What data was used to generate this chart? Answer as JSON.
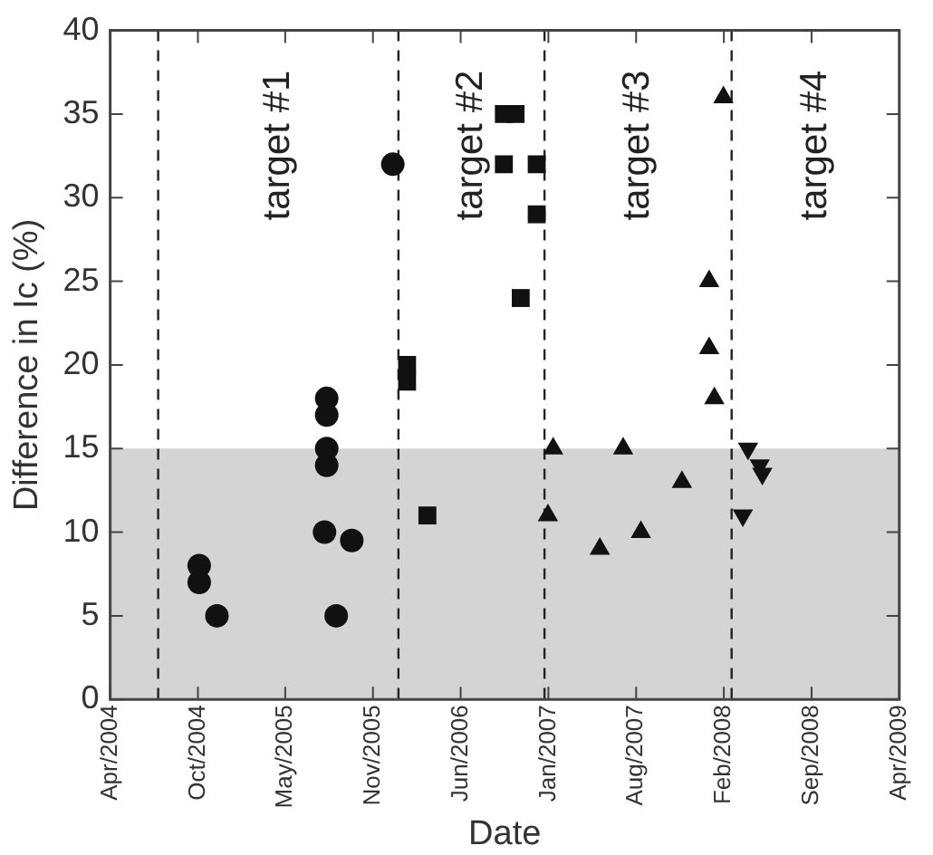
{
  "chart_data": {
    "type": "scatter",
    "xlabel": "Date",
    "ylabel": "Difference in Ic (%)",
    "xlim": [
      "2004-04-01",
      "2009-04-01"
    ],
    "ylim": [
      0,
      40
    ],
    "yticks": [
      0,
      5,
      10,
      15,
      20,
      25,
      30,
      35,
      40
    ],
    "xticks": [
      {
        "value": "2004-04-01",
        "label": "Apr/2004"
      },
      {
        "value": "2004-10-21",
        "label": "Oct/2004"
      },
      {
        "value": "2005-05-11",
        "label": "May/2005"
      },
      {
        "value": "2005-11-30",
        "label": "Nov/2005"
      },
      {
        "value": "2006-06-21",
        "label": "Jun/2006"
      },
      {
        "value": "2007-01-10",
        "label": "Jan/2007"
      },
      {
        "value": "2007-08-01",
        "label": "Aug/2007"
      },
      {
        "value": "2008-02-20",
        "label": "Feb/2008"
      },
      {
        "value": "2008-09-10",
        "label": "Sep/2008"
      },
      {
        "value": "2009-04-01",
        "label": "Apr/2009"
      }
    ],
    "grid": false,
    "legend": false,
    "series": [
      {
        "color": "#111111",
        "marker": "circle",
        "x": [
          "2004-10-24",
          "2004-10-24",
          "2004-12-04",
          "2005-08-15",
          "2005-08-15",
          "2005-08-15",
          "2005-08-15",
          "2005-08-10",
          "2005-09-06",
          "2005-10-12",
          "2006-01-15"
        ],
        "values": [
          8,
          7,
          5,
          18,
          17,
          15,
          14,
          10,
          5,
          9.5,
          32
        ]
      },
      {
        "color": "#111111",
        "marker": "square",
        "x": [
          "2006-02-17",
          "2006-02-17",
          "2006-04-05",
          "2006-09-29",
          "2006-09-29",
          "2006-10-26",
          "2006-11-07",
          "2006-12-14",
          "2006-12-14"
        ],
        "values": [
          20,
          19,
          11,
          35,
          32,
          35,
          24,
          32,
          29
        ]
      },
      {
        "color": "#111111",
        "marker": "triangle",
        "x": [
          "2007-01-09",
          "2007-01-21",
          "2007-05-09",
          "2007-07-02",
          "2007-08-12",
          "2007-11-15",
          "2008-01-17",
          "2008-01-17",
          "2008-01-29",
          "2008-02-19"
        ],
        "values": [
          11,
          15,
          9,
          15,
          10,
          13,
          25,
          21,
          18,
          36
        ]
      },
      {
        "color": "#111111",
        "marker": "triangle-down",
        "x": [
          "2008-04-04",
          "2008-04-16",
          "2008-05-13",
          "2008-05-19"
        ],
        "values": [
          11,
          15,
          14,
          13.5
        ]
      }
    ],
    "ref_lines": [
      {
        "axis": "x",
        "value": "2004-07-21",
        "line_style": "dashed",
        "color": "#222222"
      },
      {
        "axis": "x",
        "value": "2006-01-28",
        "line_style": "dashed",
        "color": "#222222"
      },
      {
        "axis": "x",
        "value": "2007-01-01",
        "line_style": "dashed",
        "color": "#222222"
      },
      {
        "axis": "x",
        "value": "2008-03-09",
        "line_style": "dashed",
        "color": "#222222"
      }
    ],
    "bands": [
      {
        "axis": "y",
        "from": 0,
        "to": 15,
        "color": "#d4d4d4"
      }
    ],
    "annotations": [
      "target #1",
      "target #2",
      "target #3",
      "target #4"
    ]
  }
}
